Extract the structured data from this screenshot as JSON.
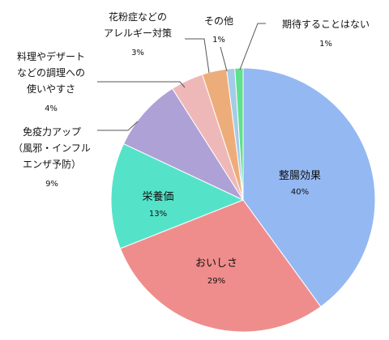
{
  "chart_data": {
    "type": "pie",
    "title": "",
    "slices": [
      {
        "label": "整腸効果",
        "value": 40,
        "display": "40%",
        "color": "#94b8f2"
      },
      {
        "label": "おいしさ",
        "value": 29,
        "display": "29%",
        "color": "#ef8d8d"
      },
      {
        "label": "栄養価",
        "value": 13,
        "display": "13%",
        "color": "#54e3c8"
      },
      {
        "label_lines": [
          "免疫力アップ",
          "（風邪・インフル",
          "エンザ予防）"
        ],
        "value": 9,
        "display": "9%",
        "color": "#aea1d6"
      },
      {
        "label_lines": [
          "料理やデザート",
          "などの調理への",
          "使いやすさ"
        ],
        "value": 4,
        "display": "4%",
        "color": "#efb8b8"
      },
      {
        "label_lines": [
          "花粉症などの",
          "アレルギー対策"
        ],
        "value": 3,
        "display": "3%",
        "color": "#edad7a"
      },
      {
        "label": "その他",
        "value": 1,
        "display": "1%",
        "color": "#a6cbe6"
      },
      {
        "label": "期待することはない",
        "value": 1,
        "display": "1%",
        "color": "#5fe08e"
      }
    ]
  }
}
